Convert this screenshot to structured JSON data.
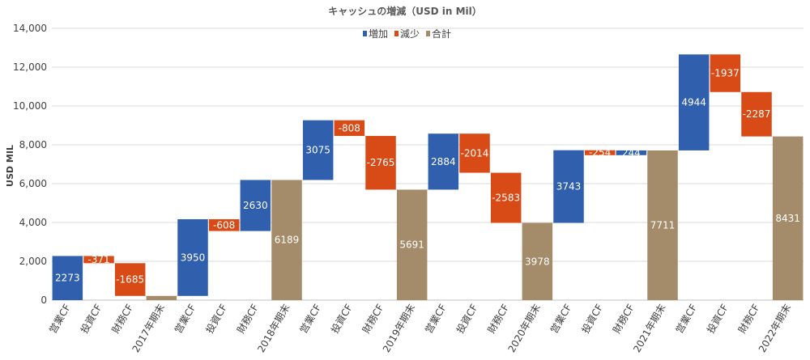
{
  "chart_data": {
    "type": "waterfall",
    "title": "キャッシュの増減（USD in Mil）",
    "ylabel": "USD MIL",
    "ylim": [
      0,
      14000
    ],
    "yticks": [
      "0",
      "2,000",
      "4,000",
      "6,000",
      "8,000",
      "10,000",
      "12,000",
      "14,000"
    ],
    "grid": true,
    "legend_position": "top-center",
    "legend": [
      {
        "label": "増加",
        "color": "#2f5fad"
      },
      {
        "label": "減少",
        "color": "#d84b16"
      },
      {
        "label": "合計",
        "color": "#a48c6a"
      }
    ],
    "items": [
      {
        "label": "営業CF",
        "value": 2273,
        "base": 0,
        "kind": "increase"
      },
      {
        "label": "投資CF",
        "value": -371,
        "base": 2273,
        "kind": "decrease"
      },
      {
        "label": "財務CF",
        "value": -1685,
        "base": 1902,
        "kind": "decrease"
      },
      {
        "label": "2017年期末",
        "value": 217,
        "base": 0,
        "kind": "total"
      },
      {
        "label": "営業CF",
        "value": 3950,
        "base": 217,
        "kind": "increase"
      },
      {
        "label": "投資CF",
        "value": -608,
        "base": 4167,
        "kind": "decrease"
      },
      {
        "label": "財務CF",
        "value": 2630,
        "base": 3559,
        "kind": "increase"
      },
      {
        "label": "2018年期末",
        "value": 6189,
        "base": 0,
        "kind": "total"
      },
      {
        "label": "営業CF",
        "value": 3075,
        "base": 6189,
        "kind": "increase"
      },
      {
        "label": "投資CF",
        "value": -808,
        "base": 9264,
        "kind": "decrease"
      },
      {
        "label": "財務CF",
        "value": -2765,
        "base": 8456,
        "kind": "decrease"
      },
      {
        "label": "2019年期末",
        "value": 5691,
        "base": 0,
        "kind": "total"
      },
      {
        "label": "営業CF",
        "value": 2884,
        "base": 5691,
        "kind": "increase"
      },
      {
        "label": "投資CF",
        "value": -2014,
        "base": 8575,
        "kind": "decrease"
      },
      {
        "label": "財務CF",
        "value": -2583,
        "base": 6561,
        "kind": "decrease"
      },
      {
        "label": "2020年期末",
        "value": 3978,
        "base": 0,
        "kind": "total"
      },
      {
        "label": "営業CF",
        "value": 3743,
        "base": 3978,
        "kind": "increase"
      },
      {
        "label": "投資CF",
        "value": -254,
        "base": 7721,
        "kind": "decrease"
      },
      {
        "label": "財務CF",
        "value": 244,
        "base": 7467,
        "kind": "increase"
      },
      {
        "label": "2021年期末",
        "value": 7711,
        "base": 0,
        "kind": "total"
      },
      {
        "label": "営業CF",
        "value": 4944,
        "base": 7711,
        "kind": "increase"
      },
      {
        "label": "投資CF",
        "value": -1937,
        "base": 12655,
        "kind": "decrease"
      },
      {
        "label": "財務CF",
        "value": -2287,
        "base": 10718,
        "kind": "decrease"
      },
      {
        "label": "2022年期末",
        "value": 8431,
        "base": 0,
        "kind": "total"
      }
    ]
  }
}
